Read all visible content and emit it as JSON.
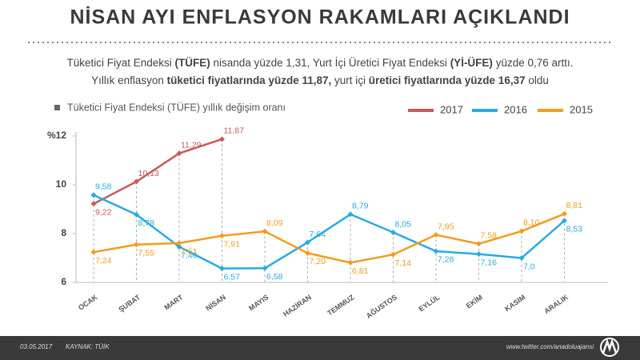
{
  "chart_data": {
    "type": "line",
    "title": "NİSAN AYI ENFLASYON RAKAMLARI AÇIKLANDI",
    "subtitle_lines": [
      [
        {
          "text": "Tüketici Fiyat Endeksi ",
          "bold": false
        },
        {
          "text": "(TÜFE)",
          "bold": true
        },
        {
          "text": " nisanda yüzde 1,31, Yurt İçi Üretici Fiyat Endeksi ",
          "bold": false
        },
        {
          "text": "(Yİ-ÜFE)",
          "bold": true
        },
        {
          "text": " yüzde 0,76 arttı.",
          "bold": false
        }
      ],
      [
        {
          "text": "Yıllık enflasyon ",
          "bold": false
        },
        {
          "text": "tüketici fiyatlarında yüzde 11,87,",
          "bold": true
        },
        {
          "text": " yurt içi ",
          "bold": false
        },
        {
          "text": "üretici fiyatlarında yüzde 16,37",
          "bold": true
        },
        {
          "text": " oldu",
          "bold": false
        }
      ]
    ],
    "legend_title": "Tüketici Fiyat Endeksi (TÜFE) yıllık değişim oranı",
    "categories": [
      "OCAK",
      "ŞUBAT",
      "MART",
      "NİSAN",
      "MAYIS",
      "HAZİRAN",
      "TEMMUZ",
      "AĞUSTOS",
      "EYLÜL",
      "EKİM",
      "KASIM",
      "ARALIK"
    ],
    "series": [
      {
        "name": "2017",
        "color": "#c9595a",
        "values": [
          9.22,
          10.13,
          11.29,
          11.87,
          null,
          null,
          null,
          null,
          null,
          null,
          null,
          null
        ],
        "value_labels": [
          "9,22",
          "10,13",
          "11,29",
          "11,87",
          null,
          null,
          null,
          null,
          null,
          null,
          null,
          null
        ]
      },
      {
        "name": "2016",
        "color": "#2aaae1",
        "values": [
          9.58,
          8.78,
          7.46,
          6.57,
          6.58,
          7.64,
          8.79,
          8.05,
          7.28,
          7.16,
          7.0,
          8.53
        ],
        "value_labels": [
          "9,58",
          "8,78",
          "7,46",
          "6,57",
          "6,58",
          "7,64",
          "8,79",
          "8,05",
          "7,28",
          "7,16",
          "7,0",
          "8,53"
        ]
      },
      {
        "name": "2015",
        "color": "#f39c1f",
        "values": [
          7.24,
          7.55,
          7.61,
          7.91,
          8.09,
          7.2,
          6.81,
          7.14,
          7.95,
          7.58,
          8.1,
          8.81
        ],
        "value_labels": [
          "7,24",
          "7,55",
          "7,61",
          "7,91",
          "8,09",
          "7,20",
          "6,81",
          "7,14",
          "7,95",
          "7,58",
          "8,10",
          "8,81"
        ]
      }
    ],
    "ylim": [
      6,
      12
    ],
    "yticks": [
      6,
      8,
      10,
      {
        "value": 12,
        "label": "%12"
      }
    ],
    "footer": {
      "date": "03.05.2017",
      "source": "KAYNAK: TÜİK",
      "url": "www.twitter.com/anadoluajansi"
    }
  }
}
